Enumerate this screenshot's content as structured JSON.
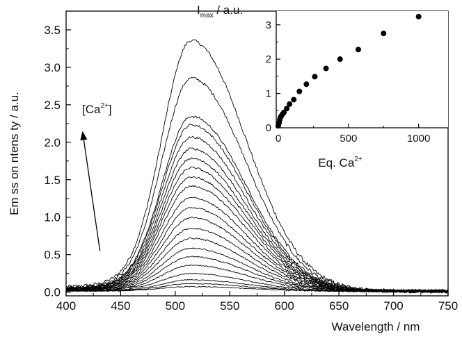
{
  "chart_data": [
    {
      "type": "line",
      "role": "main",
      "title": "",
      "xlabel": "Wavelength / nm",
      "ylabel": "Em ss on  ntens ty / a.u.",
      "xlim": [
        400,
        750
      ],
      "ylim": [
        -0.05,
        3.75
      ],
      "xticks": [
        400,
        450,
        500,
        550,
        600,
        650,
        700,
        750
      ],
      "xtick_labels": [
        "400",
        "450",
        "500",
        "550",
        "600",
        "650",
        "700",
        "750"
      ],
      "yticks": [
        0.0,
        0.5,
        1.0,
        1.5,
        2.0,
        2.5,
        3.0,
        3.5
      ],
      "ytick_labels": [
        "0.0",
        "0.5",
        "1.0",
        "1.5",
        "2.0",
        "2.5",
        "3.0",
        "3.5"
      ],
      "grid": false,
      "annotation": {
        "prefix": "[Ca",
        "superscript": "2+",
        "suffix": "]",
        "arrow_from": [
          431,
          0.55
        ],
        "arrow_to": [
          415,
          2.15
        ]
      },
      "peak_wavelength_nm": 515,
      "series": [
        {
          "peak": 3.27
        },
        {
          "peak": 2.78
        },
        {
          "peak": 2.28
        },
        {
          "peak": 2.17
        },
        {
          "peak": 2.01
        },
        {
          "peak": 1.86
        },
        {
          "peak": 1.73
        },
        {
          "peak": 1.61
        },
        {
          "peak": 1.49
        },
        {
          "peak": 1.37
        },
        {
          "peak": 1.22
        },
        {
          "peak": 1.09
        },
        {
          "peak": 0.96
        },
        {
          "peak": 0.82
        },
        {
          "peak": 0.69
        },
        {
          "peak": 0.56
        },
        {
          "peak": 0.45
        },
        {
          "peak": 0.34
        },
        {
          "peak": 0.23
        },
        {
          "peak": 0.15
        },
        {
          "peak": 0.1
        },
        {
          "peak": 0.06
        }
      ]
    },
    {
      "type": "scatter",
      "role": "inset",
      "title": "",
      "ylabel_main": "I",
      "ylabel_sub": "max",
      "ylabel_suffix": " / a.u.",
      "xlabel_prefix": "Eq. Ca",
      "xlabel_sup": "2+",
      "xlim": [
        -15,
        1210
      ],
      "ylim": [
        0,
        3.4
      ],
      "xticks": [
        0,
        500,
        1000
      ],
      "xtick_labels": [
        "0",
        "500",
        "1000"
      ],
      "yticks": [
        0,
        1,
        2,
        3
      ],
      "ytick_labels": [
        "0",
        "1",
        "2",
        "3"
      ],
      "x": [
        0,
        2,
        5,
        10,
        15,
        20,
        30,
        40,
        60,
        80,
        110,
        150,
        200,
        260,
        340,
        440,
        570,
        750,
        1000
      ],
      "y": [
        0.06,
        0.1,
        0.15,
        0.23,
        0.3,
        0.34,
        0.4,
        0.45,
        0.56,
        0.69,
        0.82,
        1.06,
        1.27,
        1.49,
        1.73,
        2.0,
        2.28,
        2.75,
        3.24
      ]
    }
  ]
}
